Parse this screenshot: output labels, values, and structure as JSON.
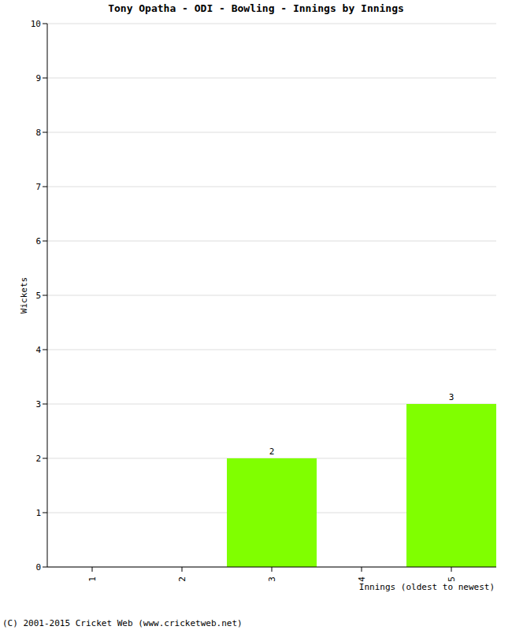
{
  "chart_data": {
    "type": "bar",
    "title": "Tony Opatha - ODI - Bowling - Innings by Innings",
    "x_label": "Innings (oldest to newest)",
    "y_label": "Wickets",
    "categories": [
      "1",
      "2",
      "3",
      "4",
      "5"
    ],
    "values": [
      0,
      0,
      2,
      0,
      3
    ],
    "color": "#80ff00",
    "ylim": [
      0,
      10
    ],
    "yticks": [
      0,
      1,
      2,
      3,
      4,
      5,
      6,
      7,
      8,
      9,
      10
    ],
    "grid": true,
    "data_labels": true,
    "annotations": [
      "(C) 2001-2015 Cricket Web (www.cricketweb.net)"
    ]
  }
}
